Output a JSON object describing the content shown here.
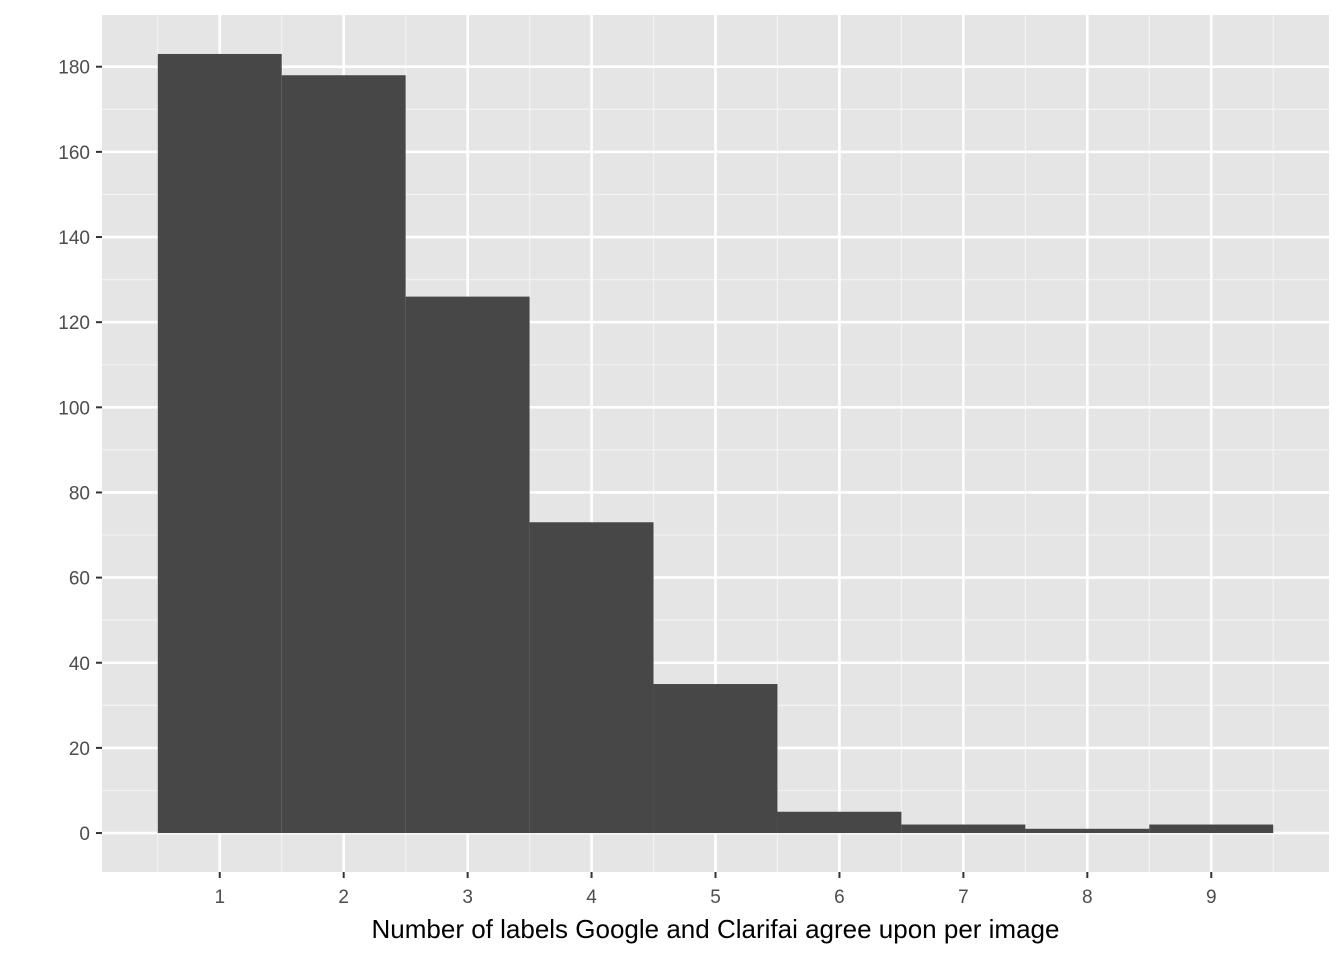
{
  "chart_data": {
    "type": "bar",
    "title": "",
    "xlabel": "Number of labels Google and Clarifai agree upon per image",
    "ylabel": "",
    "categories": [
      "1",
      "2",
      "3",
      "4",
      "5",
      "6",
      "7",
      "8",
      "9"
    ],
    "x": [
      1,
      2,
      3,
      4,
      5,
      6,
      7,
      8,
      9
    ],
    "values": [
      183,
      178,
      126,
      73,
      35,
      5,
      2,
      1,
      2
    ],
    "xlim": [
      0.05,
      9.95
    ],
    "ylim": [
      -9.15,
      192.15
    ],
    "yticks": [
      0,
      20,
      40,
      60,
      80,
      100,
      120,
      140,
      160,
      180
    ],
    "grid": true,
    "legend": "none",
    "colors": {
      "bar": "#474747",
      "panel": "#e5e5e5",
      "grid_major": "#ffffff",
      "grid_minor": "#f2f2f2",
      "tick_text": "#4d4d4d",
      "axis_title": "#000000"
    }
  }
}
